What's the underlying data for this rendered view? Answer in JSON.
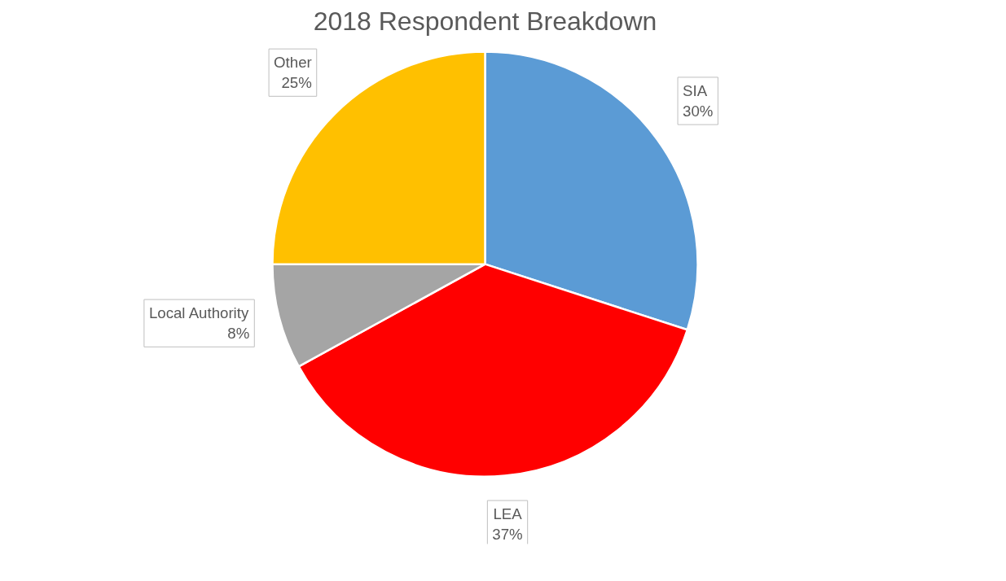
{
  "chart_data": {
    "type": "pie",
    "title": "2018 Respondent Breakdown",
    "categories": [
      "SIA",
      "LEA",
      "Local Authority",
      "Other"
    ],
    "values": [
      30,
      37,
      8,
      25
    ],
    "value_labels": [
      "30%",
      "37%",
      "8%",
      "25%"
    ],
    "colors": [
      "#5b9bd5",
      "#ff0000",
      "#a5a5a5",
      "#ffc000"
    ]
  }
}
